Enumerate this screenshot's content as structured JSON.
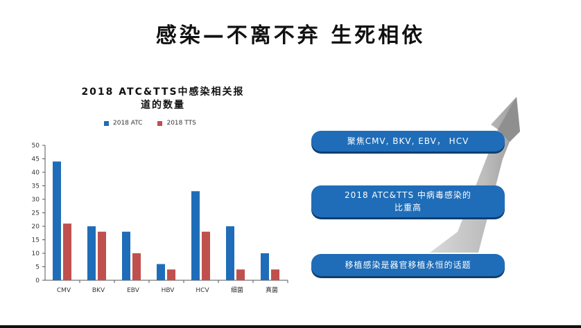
{
  "slide": {
    "title": "感染—不离不弃  生死相依"
  },
  "chart_data": {
    "type": "bar",
    "title": "2018  ATC&TTS中感染相关报道的数量",
    "title_lines": [
      "2018  ATC&TTS中感染相关报",
      "道的数量"
    ],
    "categories": [
      "CMV",
      "BKV",
      "EBV",
      "HBV",
      "HCV",
      "细菌",
      "真菌"
    ],
    "series": [
      {
        "name": "2018  ATC",
        "color": "#1f6db8",
        "values": [
          44,
          20,
          18,
          6,
          33,
          20,
          10
        ]
      },
      {
        "name": "2018  TTS",
        "color": "#c0504d",
        "values": [
          21,
          18,
          10,
          4,
          18,
          4,
          4
        ]
      }
    ],
    "ylim": [
      0,
      50
    ],
    "yticks": [
      0,
      5,
      10,
      15,
      20,
      25,
      30,
      35,
      40,
      45,
      50
    ],
    "grid": false,
    "legend": "top"
  },
  "callouts": [
    {
      "text": "聚焦CMV, BKV, EBV， HCV"
    },
    {
      "text": "2018  ATC&TTS 中病毒感染的\n比重高"
    },
    {
      "text": "移植感染是器官移植永恒的话题"
    }
  ],
  "colors": {
    "callout_bg": "#1f6db8",
    "arrow": "#b8b8b8"
  }
}
